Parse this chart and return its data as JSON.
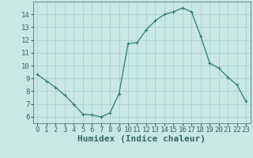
{
  "x": [
    0,
    1,
    2,
    3,
    4,
    5,
    6,
    7,
    8,
    9,
    10,
    11,
    12,
    13,
    14,
    15,
    16,
    17,
    18,
    19,
    20,
    21,
    22,
    23
  ],
  "y": [
    9.3,
    8.8,
    8.3,
    7.7,
    7.0,
    6.2,
    6.15,
    6.0,
    6.3,
    7.8,
    11.7,
    11.8,
    12.8,
    13.5,
    14.0,
    14.2,
    14.5,
    14.2,
    12.3,
    10.2,
    9.8,
    9.1,
    8.5,
    7.2
  ],
  "line_color": "#2d7b6f",
  "marker": "+",
  "marker_color": "#2d7b6f",
  "bg_color": "#c8e8e4",
  "grid_color": "#a8ccc8",
  "xlabel": "Humidex (Indice chaleur)",
  "xlabel_fontsize": 8,
  "xlim": [
    -0.5,
    23.5
  ],
  "ylim": [
    5.5,
    15.0
  ],
  "xtick_labels": [
    "0",
    "1",
    "2",
    "3",
    "4",
    "5",
    "6",
    "7",
    "8",
    "9",
    "10",
    "11",
    "12",
    "13",
    "14",
    "15",
    "16",
    "17",
    "18",
    "19",
    "20",
    "21",
    "22",
    "23"
  ],
  "ytick_values": [
    6,
    7,
    8,
    9,
    10,
    11,
    12,
    13,
    14
  ],
  "tick_fontsize": 6.5,
  "title": ""
}
